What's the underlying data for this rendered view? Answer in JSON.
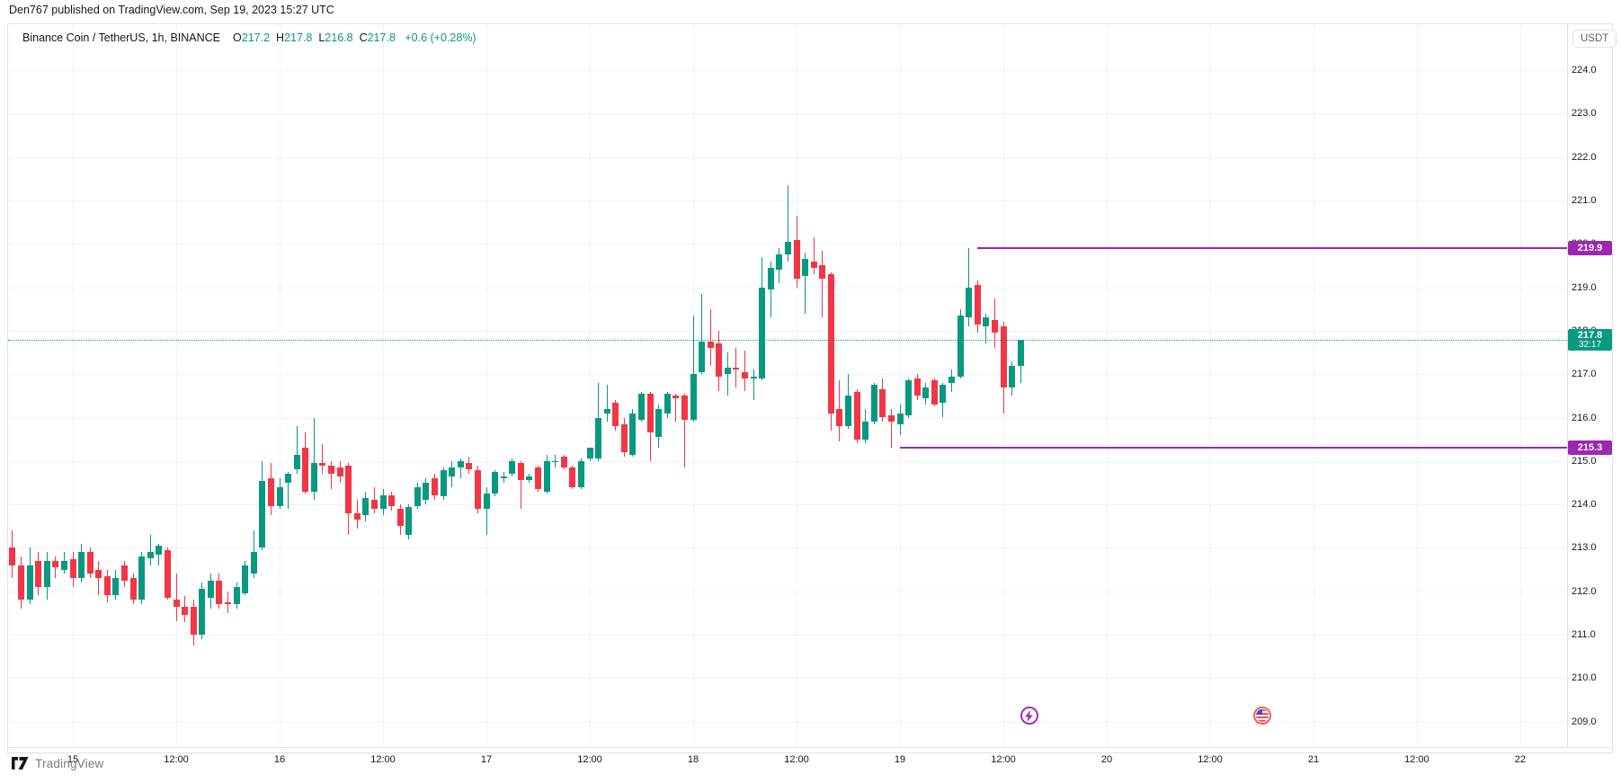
{
  "attribution": "Den767 published on TradingView.com, Sep 19, 2023 15:27 UTC",
  "legend": {
    "title": "Binance Coin / TetherUS, 1h, BINANCE",
    "ohlc": [
      {
        "label": "O",
        "value": "217.2"
      },
      {
        "label": "H",
        "value": "217.8"
      },
      {
        "label": "L",
        "value": "216.8"
      },
      {
        "label": "C",
        "value": "217.8"
      }
    ],
    "change": "+0.6 (+0.28%)"
  },
  "currency_badge": "USDT",
  "price_axis": {
    "labels": [
      {
        "text": "224.0",
        "price": 224.0
      },
      {
        "text": "223.0",
        "price": 223.0
      },
      {
        "text": "222.0",
        "price": 222.0
      },
      {
        "text": "221.0",
        "price": 221.0
      },
      {
        "text": "220.0",
        "price": 220.0
      },
      {
        "text": "219.0",
        "price": 219.0
      },
      {
        "text": "218.0",
        "price": 218.0
      },
      {
        "text": "217.0",
        "price": 217.0
      },
      {
        "text": "216.0",
        "price": 216.0
      },
      {
        "text": "215.0",
        "price": 215.0
      },
      {
        "text": "214.0",
        "price": 214.0
      },
      {
        "text": "213.0",
        "price": 213.0
      },
      {
        "text": "212.0",
        "price": 212.0
      },
      {
        "text": "211.0",
        "price": 211.0
      },
      {
        "text": "210.0",
        "price": 210.0
      },
      {
        "text": "209.0",
        "price": 209.0
      }
    ]
  },
  "time_axis": {
    "labels": [
      {
        "text": "15",
        "hour": 0
      },
      {
        "text": "12:00",
        "hour": 12
      },
      {
        "text": "16",
        "hour": 24
      },
      {
        "text": "12:00",
        "hour": 36
      },
      {
        "text": "17",
        "hour": 48
      },
      {
        "text": "12:00",
        "hour": 60
      },
      {
        "text": "18",
        "hour": 72
      },
      {
        "text": "12:00",
        "hour": 84
      },
      {
        "text": "19",
        "hour": 96
      },
      {
        "text": "12:00",
        "hour": 108
      },
      {
        "text": "20",
        "hour": 120
      },
      {
        "text": "12:00",
        "hour": 132
      },
      {
        "text": "21",
        "hour": 144
      },
      {
        "text": "12:00",
        "hour": 156
      },
      {
        "text": "22",
        "hour": 168
      }
    ]
  },
  "current_price": {
    "label": "217.8",
    "countdown": "32:17",
    "price": 217.8
  },
  "levels": [
    {
      "label": "219.9",
      "price": 219.9,
      "start_hour": 105
    },
    {
      "label": "215.3",
      "price": 215.3,
      "start_hour": 96
    }
  ],
  "events": [
    {
      "name": "lightning",
      "hour": 111
    },
    {
      "name": "us-flag",
      "hour": 138
    }
  ],
  "footer": {
    "logo_text": "TradingView"
  },
  "colors": {
    "up": "#089981",
    "down": "#F23645",
    "purple": "#9C27B0",
    "grid": "#F0F3FA",
    "text": "#131722",
    "muted": "#787B86",
    "border": "#E0E3EB"
  },
  "chart_data": {
    "type": "candlestick",
    "title": "Binance Coin / TetherUS, 1h, BINANCE",
    "symbol": "BNB/USDT",
    "exchange": "BINANCE",
    "interval": "1h",
    "start_time": "Sep 14 17:00 UTC",
    "hours_from_sep15_start": -7,
    "ylim": [
      208.7,
      224.6
    ],
    "grid": true,
    "day_high_line": 219.9,
    "day_low_line": 215.3,
    "last_close": 217.8,
    "candles": [
      [
        213.0,
        213.4,
        212.3,
        212.6
      ],
      [
        212.6,
        212.8,
        211.6,
        211.8
      ],
      [
        211.8,
        213.0,
        211.7,
        212.6
      ],
      [
        212.7,
        212.9,
        211.9,
        212.1
      ],
      [
        212.1,
        212.9,
        211.8,
        212.7
      ],
      [
        212.7,
        212.8,
        212.3,
        212.55
      ],
      [
        212.5,
        212.9,
        212.4,
        212.7
      ],
      [
        212.75,
        212.9,
        212.1,
        212.3
      ],
      [
        212.3,
        213.1,
        212.2,
        212.9
      ],
      [
        212.9,
        213.0,
        212.3,
        212.4
      ],
      [
        212.5,
        212.7,
        211.9,
        212.3
      ],
      [
        212.35,
        212.5,
        211.75,
        211.9
      ],
      [
        211.9,
        212.5,
        211.8,
        212.3
      ],
      [
        212.6,
        212.7,
        212.1,
        212.25
      ],
      [
        212.3,
        212.4,
        211.7,
        211.8
      ],
      [
        211.8,
        212.9,
        211.7,
        212.8
      ],
      [
        212.75,
        213.3,
        212.6,
        212.9
      ],
      [
        212.85,
        213.1,
        212.6,
        213.05
      ],
      [
        212.95,
        213.0,
        211.8,
        211.85
      ],
      [
        211.8,
        212.4,
        211.3,
        211.65
      ],
      [
        211.65,
        211.9,
        211.3,
        211.45
      ],
      [
        211.65,
        211.8,
        210.75,
        211.0
      ],
      [
        211.0,
        212.2,
        210.9,
        212.05
      ],
      [
        211.85,
        212.4,
        211.6,
        212.25
      ],
      [
        212.25,
        212.4,
        211.6,
        211.7
      ],
      [
        211.75,
        212.0,
        211.5,
        211.7
      ],
      [
        211.7,
        212.2,
        211.6,
        212.1
      ],
      [
        211.95,
        212.7,
        211.9,
        212.6
      ],
      [
        212.4,
        213.4,
        212.3,
        212.9
      ],
      [
        213.0,
        215.0,
        212.95,
        214.55
      ],
      [
        214.6,
        214.95,
        213.75,
        213.95
      ],
      [
        213.95,
        214.6,
        213.9,
        214.4
      ],
      [
        214.5,
        214.75,
        213.9,
        214.7
      ],
      [
        214.8,
        215.8,
        214.7,
        215.15
      ],
      [
        215.3,
        215.65,
        214.25,
        214.3
      ],
      [
        214.3,
        216.0,
        214.1,
        214.95
      ],
      [
        214.95,
        215.4,
        214.7,
        214.9
      ],
      [
        214.9,
        215.0,
        214.35,
        214.7
      ],
      [
        214.85,
        215.0,
        214.5,
        214.65
      ],
      [
        214.9,
        214.95,
        213.3,
        213.8
      ],
      [
        213.8,
        214.1,
        213.45,
        213.65
      ],
      [
        213.75,
        214.3,
        213.6,
        214.15
      ],
      [
        214.1,
        214.4,
        213.8,
        213.9
      ],
      [
        213.9,
        214.35,
        213.75,
        214.2
      ],
      [
        214.2,
        214.3,
        213.85,
        213.95
      ],
      [
        213.9,
        214.0,
        213.3,
        213.5
      ],
      [
        213.3,
        214.0,
        213.2,
        213.95
      ],
      [
        213.95,
        214.5,
        213.9,
        214.4
      ],
      [
        214.1,
        214.6,
        214.0,
        214.5
      ],
      [
        214.6,
        214.7,
        214.1,
        214.2
      ],
      [
        214.2,
        214.85,
        214.1,
        214.8
      ],
      [
        214.65,
        215.0,
        214.4,
        214.85
      ],
      [
        214.85,
        215.05,
        214.6,
        215.0
      ],
      [
        214.95,
        215.1,
        214.7,
        214.8
      ],
      [
        214.8,
        214.9,
        213.8,
        213.9
      ],
      [
        213.9,
        214.4,
        213.3,
        214.25
      ],
      [
        214.25,
        214.8,
        214.2,
        214.75
      ],
      [
        214.6,
        214.75,
        214.5,
        214.65
      ],
      [
        214.7,
        215.05,
        214.65,
        215.0
      ],
      [
        214.95,
        215.0,
        213.9,
        214.55
      ],
      [
        214.55,
        214.7,
        214.5,
        214.65
      ],
      [
        214.85,
        214.9,
        214.3,
        214.35
      ],
      [
        214.3,
        215.15,
        214.25,
        215.0
      ],
      [
        215.0,
        215.15,
        214.85,
        215.0
      ],
      [
        215.1,
        215.15,
        214.8,
        214.85
      ],
      [
        214.85,
        214.9,
        214.35,
        214.4
      ],
      [
        214.4,
        215.05,
        214.35,
        215.0
      ],
      [
        215.05,
        215.3,
        215.0,
        215.3
      ],
      [
        215.05,
        216.8,
        215.0,
        216.0
      ],
      [
        216.1,
        216.75,
        215.9,
        216.2
      ],
      [
        216.35,
        216.4,
        215.7,
        215.8
      ],
      [
        215.85,
        216.0,
        215.1,
        215.2
      ],
      [
        215.15,
        216.2,
        215.1,
        216.1
      ],
      [
        215.95,
        216.6,
        215.9,
        216.55
      ],
      [
        216.55,
        216.6,
        215.0,
        215.65
      ],
      [
        215.55,
        216.3,
        215.3,
        216.2
      ],
      [
        216.1,
        216.6,
        216.0,
        216.55
      ],
      [
        216.5,
        216.55,
        215.9,
        216.45
      ],
      [
        216.5,
        216.55,
        214.85,
        215.95
      ],
      [
        215.95,
        218.35,
        215.9,
        217.0
      ],
      [
        217.05,
        218.85,
        217.0,
        217.75
      ],
      [
        217.75,
        218.5,
        217.2,
        217.6
      ],
      [
        217.7,
        218.0,
        216.6,
        216.95
      ],
      [
        217.0,
        217.5,
        216.5,
        217.15
      ],
      [
        217.15,
        217.6,
        216.7,
        217.1
      ],
      [
        217.05,
        217.55,
        216.6,
        216.9
      ],
      [
        216.9,
        217.1,
        216.4,
        216.95
      ],
      [
        216.9,
        219.7,
        216.85,
        219.0
      ],
      [
        218.95,
        219.6,
        218.3,
        219.45
      ],
      [
        219.4,
        219.9,
        219.1,
        219.75
      ],
      [
        219.75,
        221.35,
        219.6,
        220.05
      ],
      [
        220.1,
        220.65,
        219.0,
        219.2
      ],
      [
        219.25,
        219.8,
        218.4,
        219.65
      ],
      [
        219.6,
        220.15,
        219.3,
        219.45
      ],
      [
        219.5,
        219.85,
        218.3,
        219.2
      ],
      [
        219.3,
        219.35,
        215.7,
        216.1
      ],
      [
        216.2,
        216.85,
        215.45,
        215.8
      ],
      [
        215.8,
        217.0,
        215.75,
        216.5
      ],
      [
        216.6,
        216.65,
        215.4,
        215.5
      ],
      [
        215.5,
        216.2,
        215.4,
        215.9
      ],
      [
        215.9,
        216.8,
        215.85,
        216.75
      ],
      [
        216.65,
        216.9,
        215.9,
        216.0
      ],
      [
        216.05,
        216.2,
        215.3,
        215.9
      ],
      [
        215.85,
        216.3,
        215.6,
        216.1
      ],
      [
        216.05,
        216.9,
        216.0,
        216.85
      ],
      [
        216.9,
        217.0,
        216.4,
        216.5
      ],
      [
        216.45,
        216.8,
        216.3,
        216.7
      ],
      [
        216.85,
        216.9,
        216.25,
        216.3
      ],
      [
        216.35,
        216.8,
        216.0,
        216.75
      ],
      [
        216.8,
        217.1,
        216.6,
        216.95
      ],
      [
        216.95,
        218.5,
        216.9,
        218.35
      ],
      [
        218.3,
        219.9,
        218.1,
        219.0
      ],
      [
        219.05,
        219.15,
        217.95,
        218.15
      ],
      [
        218.1,
        218.4,
        217.7,
        218.3
      ],
      [
        218.25,
        218.75,
        217.6,
        217.95
      ],
      [
        218.1,
        218.2,
        216.1,
        216.7
      ],
      [
        216.7,
        217.3,
        216.5,
        217.2
      ],
      [
        217.2,
        217.8,
        216.8,
        217.8
      ]
    ]
  }
}
